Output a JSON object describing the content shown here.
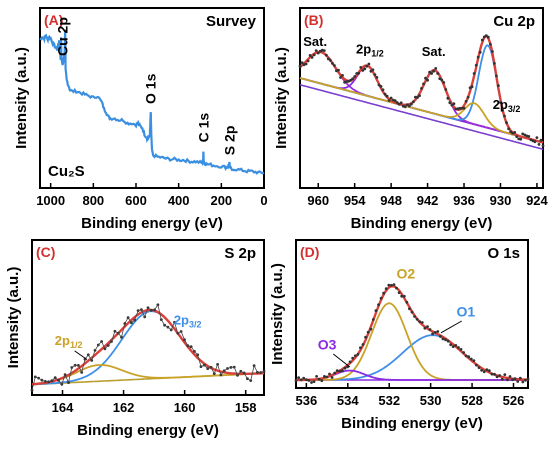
{
  "chart_data": [
    {
      "id": "A",
      "type": "line",
      "panel_label": "(A)",
      "title": "Survey",
      "xlabel": "Binding energy (eV)",
      "ylabel": "Intensity (a.u.)",
      "xlim": [
        1050,
        0
      ],
      "x_ticks": [
        1000,
        800,
        600,
        400,
        200,
        0
      ],
      "y_ticks_shown": false,
      "sample_label": "Cu₂S",
      "colors": {
        "line": "#3b8fe0"
      },
      "series": [
        {
          "x": [
            1048,
            1040,
            1030,
            1022,
            1015,
            1010,
            1000,
            990,
            980,
            970,
            965,
            960,
            955,
            953,
            952,
            951,
            950,
            948,
            945,
            940,
            935,
            934,
            933,
            932,
            931,
            930,
            925,
            920,
            910,
            900,
            880,
            860,
            840,
            820,
            800,
            780,
            760,
            750,
            740,
            730,
            720,
            700,
            680,
            660,
            640,
            620,
            600,
            590,
            580,
            570,
            560,
            550,
            545,
            540,
            535,
            533,
            531,
            530,
            528,
            525,
            520,
            500,
            480,
            460,
            440,
            420,
            400,
            380,
            360,
            340,
            320,
            300,
            290,
            285,
            284,
            283,
            280,
            270,
            250,
            230,
            200,
            180,
            170,
            165,
            162,
            160,
            150,
            120,
            100,
            80,
            60,
            40,
            20,
            0
          ],
          "y": [
            8.5,
            8.7,
            8.6,
            8.8,
            8.5,
            8.7,
            8.6,
            8.3,
            8.1,
            7.9,
            8.2,
            8.4,
            7.7,
            7.2,
            7.8,
            8.6,
            7.5,
            7.3,
            7.0,
            7.2,
            7.6,
            7.9,
            8.6,
            9.2,
            8.0,
            6.6,
            6.0,
            5.8,
            5.4,
            5.3,
            5.3,
            5.2,
            5.1,
            5.0,
            4.9,
            5.0,
            4.6,
            4.2,
            4.0,
            3.7,
            3.6,
            3.6,
            3.5,
            3.5,
            3.3,
            3.3,
            3.2,
            3.3,
            3.1,
            3.0,
            2.6,
            2.4,
            2.3,
            2.4,
            2.6,
            3.2,
            4.0,
            3.5,
            2.4,
            1.6,
            1.3,
            1.2,
            1.15,
            1.1,
            1.05,
            1.05,
            1.0,
            1.0,
            0.95,
            0.9,
            0.9,
            0.85,
            0.85,
            1.0,
            1.6,
            1.0,
            0.8,
            0.75,
            0.7,
            0.65,
            0.6,
            0.55,
            0.55,
            0.7,
            0.8,
            0.55,
            0.45,
            0.4,
            0.35,
            0.3,
            0.3,
            0.25,
            0.2,
            0.2
          ]
        }
      ],
      "annotations": [
        {
          "text": "Cu 2p",
          "x": 945
        },
        {
          "text": "O 1s",
          "x": 531
        },
        {
          "text": "C 1s",
          "x": 284
        },
        {
          "text": "S 2p",
          "x": 162
        }
      ]
    },
    {
      "id": "B",
      "type": "line",
      "panel_label": "(B)",
      "title": "Cu 2p",
      "xlabel": "Binding energy (eV)",
      "ylabel": "Intensity (a.u.)",
      "xlim": [
        963,
        923
      ],
      "ylim": [
        0,
        10
      ],
      "x_ticks": [
        960,
        954,
        948,
        942,
        936,
        930,
        924
      ],
      "y_ticks_shown": false,
      "colors": {
        "envelope": "#d8403a",
        "baseline": "#2f7d32",
        "sat_peak": "#9b30d9",
        "p12_peak": "#8a2be2",
        "p32_peak": "#3f8fe8",
        "p32_shoulder": "#c9a227",
        "baseline_b": "#7b3fd0",
        "data": "#333333"
      },
      "peaks": [
        {
          "name": "Sat.",
          "center": 959.5,
          "height": 2.1,
          "width": 2.4
        },
        {
          "name": "2p1/2",
          "center": 951.9,
          "height": 2.0,
          "width": 1.6
        },
        {
          "name": "Sat.",
          "center": 940.8,
          "height": 2.9,
          "width": 1.8
        },
        {
          "name": "2p3/2",
          "center": 932.1,
          "height": 5.5,
          "width": 1.5
        },
        {
          "name": "shoulder",
          "center": 934.3,
          "height": 1.4,
          "width": 1.6
        }
      ],
      "baseline": {
        "x": [
          963,
          923
        ],
        "y": [
          6.8,
          2.5
        ]
      },
      "annotations": [
        {
          "label_main": "Sat.",
          "label_sub": "",
          "x": 960.5
        },
        {
          "label_main": "2p",
          "label_sub": "1/2",
          "x": 951.5
        },
        {
          "label_main": "Sat.",
          "label_sub": "",
          "x": 941
        },
        {
          "label_main": "2p",
          "label_sub": "3/2",
          "x": 929
        }
      ]
    },
    {
      "id": "C",
      "type": "line",
      "panel_label": "(C)",
      "title": "S 2p",
      "xlabel": "Binding energy (eV)",
      "ylabel": "Intensity (a.u.)",
      "xlim": [
        165,
        157.4
      ],
      "ylim": [
        0,
        10
      ],
      "x_ticks": [
        164,
        162,
        160,
        158
      ],
      "y_ticks_shown": false,
      "colors": {
        "envelope": "#d8403a",
        "p32": "#3f8fe8",
        "p12": "#c9a227",
        "baseline": "#b8a030",
        "data": "#333333"
      },
      "peaks": [
        {
          "name": "2p3/2",
          "center": 161.1,
          "height": 5.4,
          "width": 0.95
        },
        {
          "name": "2p1/2",
          "center": 162.8,
          "height": 1.3,
          "width": 0.75
        }
      ],
      "baseline": {
        "x": [
          165,
          157.4
        ],
        "y": [
          0.2,
          1.1
        ]
      },
      "annotations": [
        {
          "label_main": "2p",
          "label_sub": "1/2",
          "x": 163.8
        },
        {
          "label_main": "2p",
          "label_sub": "3/2",
          "x": 159.9
        }
      ]
    },
    {
      "id": "D",
      "type": "line",
      "panel_label": "(D)",
      "title": "O 1s",
      "xlabel": "Binding energy (eV)",
      "ylabel": "Intensity (a.u.)",
      "xlim": [
        536.5,
        525.3
      ],
      "ylim": [
        0,
        10
      ],
      "x_ticks": [
        536,
        534,
        532,
        530,
        528,
        526
      ],
      "y_ticks_shown": false,
      "colors": {
        "envelope": "#d8403a",
        "O1": "#3f8fe8",
        "O2": "#c9a227",
        "O3": "#8a2be2",
        "baseline": "#8a2be2",
        "data": "#333333"
      },
      "peaks": [
        {
          "name": "O1",
          "center": 529.9,
          "height": 3.8,
          "width": 1.45
        },
        {
          "name": "O2",
          "center": 532.0,
          "height": 6.5,
          "width": 0.85
        },
        {
          "name": "O3",
          "center": 533.9,
          "height": 0.8,
          "width": 0.7
        }
      ],
      "baseline": {
        "x": [
          536.5,
          525.3
        ],
        "y": [
          0.0,
          0.0
        ]
      },
      "annotations": [
        {
          "text": "O3",
          "x": 535.0
        },
        {
          "text": "O2",
          "x": 531.2
        },
        {
          "text": "O1",
          "x": 528.3
        }
      ]
    }
  ]
}
